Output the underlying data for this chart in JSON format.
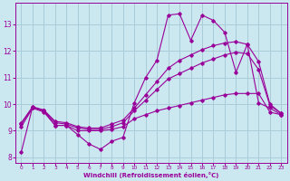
{
  "background_color": "#cbe8f0",
  "grid_color": "#a8ccd8",
  "line_color": "#990099",
  "xlabel": "Windchill (Refroidissement éolien,°C)",
  "xlim": [
    -0.5,
    23.5
  ],
  "ylim": [
    7.8,
    13.8
  ],
  "yticks": [
    8,
    9,
    10,
    11,
    12,
    13
  ],
  "xticks": [
    0,
    1,
    2,
    3,
    4,
    5,
    6,
    7,
    8,
    9,
    10,
    11,
    12,
    13,
    14,
    15,
    16,
    17,
    18,
    19,
    20,
    21,
    22,
    23
  ],
  "series": [
    {
      "x": [
        0,
        1,
        2,
        3,
        4,
        5,
        6,
        7,
        8,
        9,
        10,
        11,
        12,
        13,
        14,
        15,
        16,
        17,
        18,
        19,
        20,
        21,
        22,
        23
      ],
      "y": [
        8.2,
        9.9,
        9.75,
        9.2,
        9.2,
        8.85,
        8.5,
        8.3,
        8.6,
        8.75,
        10.05,
        11.0,
        11.65,
        13.35,
        13.4,
        12.4,
        13.35,
        13.15,
        12.7,
        11.2,
        12.25,
        10.05,
        9.85,
        9.6
      ]
    },
    {
      "x": [
        0,
        1,
        2,
        3,
        4,
        5,
        6,
        7,
        8,
        9,
        10,
        11,
        12,
        13,
        14,
        15,
        16,
        17,
        18,
        19,
        20,
        21,
        22,
        23
      ],
      "y": [
        9.15,
        9.85,
        9.7,
        9.2,
        9.2,
        9.0,
        9.0,
        9.0,
        9.05,
        9.15,
        9.45,
        9.6,
        9.75,
        9.85,
        9.95,
        10.05,
        10.15,
        10.25,
        10.35,
        10.4,
        10.4,
        10.4,
        9.7,
        9.6
      ]
    },
    {
      "x": [
        0,
        1,
        2,
        3,
        4,
        5,
        6,
        7,
        8,
        9,
        10,
        11,
        12,
        13,
        14,
        15,
        16,
        17,
        18,
        19,
        20,
        21,
        22,
        23
      ],
      "y": [
        9.25,
        9.88,
        9.75,
        9.3,
        9.25,
        9.1,
        9.05,
        9.05,
        9.15,
        9.3,
        9.75,
        10.15,
        10.55,
        10.95,
        11.15,
        11.35,
        11.55,
        11.7,
        11.85,
        11.95,
        11.9,
        11.3,
        9.95,
        9.65
      ]
    },
    {
      "x": [
        0,
        1,
        2,
        3,
        4,
        5,
        6,
        7,
        8,
        9,
        10,
        11,
        12,
        13,
        14,
        15,
        16,
        17,
        18,
        19,
        20,
        21,
        22,
        23
      ],
      "y": [
        9.3,
        9.9,
        9.78,
        9.35,
        9.3,
        9.15,
        9.1,
        9.1,
        9.25,
        9.4,
        9.85,
        10.35,
        10.85,
        11.35,
        11.65,
        11.85,
        12.05,
        12.2,
        12.3,
        12.35,
        12.25,
        11.6,
        10.0,
        9.65
      ]
    }
  ]
}
